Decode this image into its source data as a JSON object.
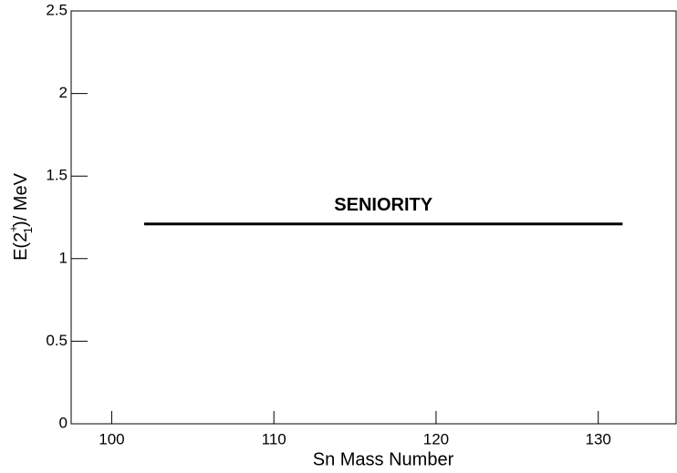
{
  "chart_data": {
    "type": "line",
    "x_label": "Sn Mass Number",
    "y_label_parts": [
      "E(2",
      "+",
      "1",
      ")/ MeV"
    ],
    "annotation": "SENIORITY",
    "x": [
      102,
      131.5
    ],
    "series": [
      {
        "color": "#000000",
        "values": [
          1.21,
          1.21
        ]
      }
    ],
    "xlim": [
      97.5,
      134.8
    ],
    "ylim": [
      0,
      2.5
    ],
    "xticks": [
      100,
      110,
      120,
      130
    ],
    "yticks": [
      0,
      0.5,
      1,
      1.5,
      2,
      2.5
    ]
  }
}
